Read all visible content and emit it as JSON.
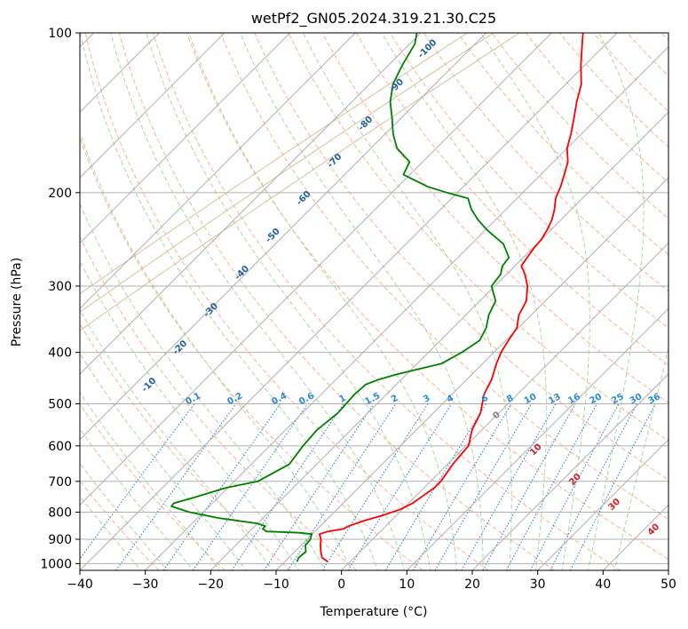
{
  "chart_data": {
    "type": "skew-t",
    "title": "wetPf2_GN05.2024.319.21.30.C25",
    "xlabel": "Temperature (°C)",
    "ylabel": "Pressure (hPa)",
    "xlim": [
      -40,
      50
    ],
    "ylim": [
      1030,
      100
    ],
    "y_scale": "log",
    "x_ticks": [
      -40,
      -30,
      -20,
      -10,
      0,
      10,
      20,
      30,
      40,
      50
    ],
    "x_tick_labels": [
      "−40",
      "−30",
      "−20",
      "−10",
      "0",
      "10",
      "20",
      "30",
      "40",
      "50"
    ],
    "y_ticks": [
      100,
      200,
      300,
      400,
      500,
      600,
      700,
      800,
      900,
      1000
    ],
    "y_tick_labels": [
      "100",
      "200",
      "300",
      "400",
      "500",
      "600",
      "700",
      "800",
      "900",
      "1000"
    ],
    "grid": true,
    "series": [
      {
        "color": "#ff0000",
        "p": [
          992,
          975,
          950,
          925,
          900,
          880,
          870,
          860,
          850,
          830,
          810,
          790,
          770,
          750,
          720,
          700,
          650,
          600,
          560,
          520,
          480,
          450,
          420,
          400,
          380,
          360,
          340,
          320,
          300,
          285,
          275,
          265,
          255,
          245,
          235,
          225,
          215,
          205,
          195,
          185,
          175,
          165,
          155,
          145,
          135,
          125,
          115,
          105,
          100
        ],
        "t": [
          -3.4,
          -4.9,
          -6.0,
          -7.0,
          -7.9,
          -8.9,
          -8.0,
          -6.0,
          -5.7,
          -4.1,
          -2.0,
          -0.3,
          0.6,
          1.0,
          1.6,
          1.6,
          0.8,
          0.4,
          -1.5,
          -2.8,
          -5.1,
          -6.2,
          -7.9,
          -8.9,
          -9.6,
          -10.2,
          -11.9,
          -12.9,
          -15.0,
          -17.2,
          -19.0,
          -19.4,
          -19.8,
          -20.0,
          -20.6,
          -21.4,
          -22.6,
          -24.1,
          -25.1,
          -26.4,
          -27.8,
          -30.0,
          -31.6,
          -33.5,
          -35.6,
          -37.6,
          -40.6,
          -43.6,
          -45.2
        ]
      },
      {
        "color": "#008000",
        "p": [
          992,
          975,
          950,
          925,
          900,
          880,
          875,
          870,
          860,
          850,
          840,
          820,
          800,
          780,
          770,
          750,
          720,
          700,
          650,
          600,
          560,
          520,
          480,
          460,
          450,
          440,
          420,
          400,
          380,
          360,
          340,
          320,
          300,
          285,
          275,
          265,
          250,
          235,
          225,
          215,
          205,
          200,
          195,
          185,
          175,
          165,
          155,
          145,
          135,
          125,
          115,
          105,
          100
        ],
        "t": [
          -8.1,
          -8.5,
          -8.3,
          -9.3,
          -9.5,
          -10.1,
          -12.1,
          -17.4,
          -18.4,
          -18.4,
          -20.1,
          -27.0,
          -32.2,
          -35.8,
          -35.9,
          -33.6,
          -30.3,
          -26.4,
          -24.2,
          -24.9,
          -25.2,
          -24.6,
          -24.9,
          -24.7,
          -23.5,
          -21.5,
          -16.3,
          -14.9,
          -14.0,
          -14.9,
          -16.5,
          -17.6,
          -20.5,
          -20.9,
          -21.9,
          -22.2,
          -25.1,
          -29.8,
          -32.7,
          -35.3,
          -37.5,
          -41.6,
          -45.4,
          -51.0,
          -52.0,
          -56.0,
          -58.8,
          -61.3,
          -64.1,
          -66.4,
          -67.9,
          -69.2,
          -70.6
        ]
      }
    ],
    "dry_adiabats_label": [],
    "moist_adiabats_label": [
      -100,
      -90,
      -80,
      -70,
      -60,
      -50,
      -40,
      -30,
      -20,
      -10
    ],
    "mixing_ratio_labels": [
      "0.1",
      "0.2",
      "0.4",
      "0.6",
      "1",
      "1.5",
      "2",
      "3",
      "4",
      "6",
      "8",
      "10",
      "13",
      "16",
      "20",
      "25",
      "30",
      "36"
    ],
    "mixing_ratio_values": [
      0.1,
      0.2,
      0.4,
      0.6,
      1,
      1.5,
      2,
      3,
      4,
      6,
      8,
      10,
      13,
      16,
      20,
      25,
      30,
      36
    ],
    "theta_e_labels": [
      "0",
      "10",
      "20",
      "30",
      "40"
    ],
    "colors": {
      "isobar": "#b0b0b0",
      "isotherm": "#b0b0b0",
      "dry_adiabat": "#ffb090",
      "moist_adiabat": "#a8d8a0",
      "mixing_ratio": "#1e78d8",
      "moist_label": "#2060a0",
      "theta_label": "#d02020",
      "temperature": "#ff0000",
      "dewpoint": "#008000"
    }
  }
}
